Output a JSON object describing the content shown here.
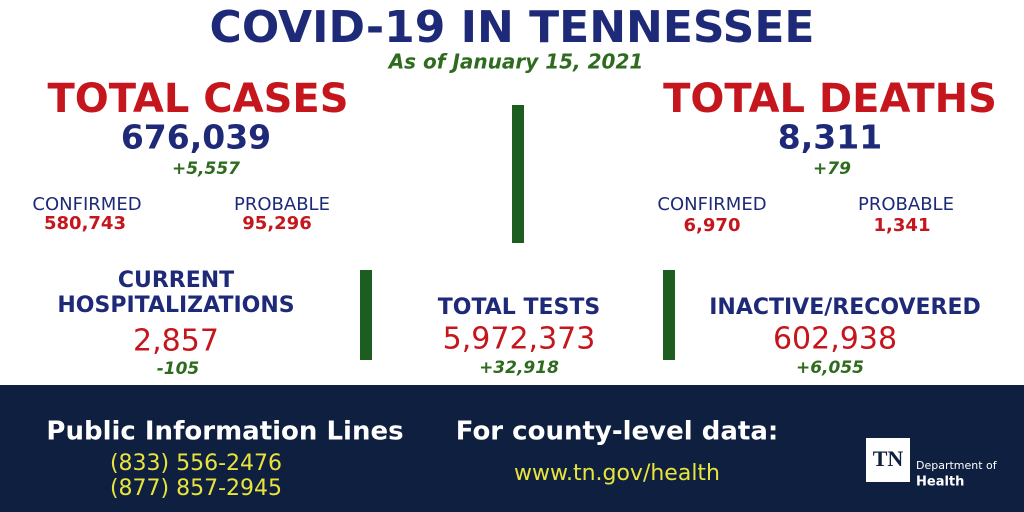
{
  "header": {
    "title": "COVID-19 IN TENNESSEE",
    "subtitle": "As of January 15, 2021"
  },
  "total_cases": {
    "label": "TOTAL CASES",
    "value": "676,039",
    "change": "+5,557",
    "confirmed_label": "CONFIRMED",
    "confirmed": "580,743",
    "probable_label": "PROBABLE",
    "probable": "95,296"
  },
  "total_deaths": {
    "label": "TOTAL DEATHS",
    "value": "8,311",
    "change": "+79",
    "confirmed_label": "CONFIRMED",
    "confirmed": "6,970",
    "probable_label": "PROBABLE",
    "probable": "1,341"
  },
  "hospitalizations": {
    "label_line1": "CURRENT",
    "label_line2": "HOSPITALIZATIONS",
    "value": "2,857",
    "change": "-105"
  },
  "tests": {
    "label": "TOTAL TESTS",
    "value": "5,972,373",
    "change": "+32,918"
  },
  "recovered": {
    "label": "INACTIVE/RECOVERED",
    "value": "602,938",
    "change": "+6,055"
  },
  "footer": {
    "info_title": "Public Information Lines",
    "phones": [
      "(833) 556-2476",
      "(877) 857-2945"
    ],
    "county_title": "For county-level data:",
    "url": "www.tn.gov/health"
  },
  "logo": {
    "abbr": "TN",
    "line1": "Department of",
    "line2": "Health"
  }
}
